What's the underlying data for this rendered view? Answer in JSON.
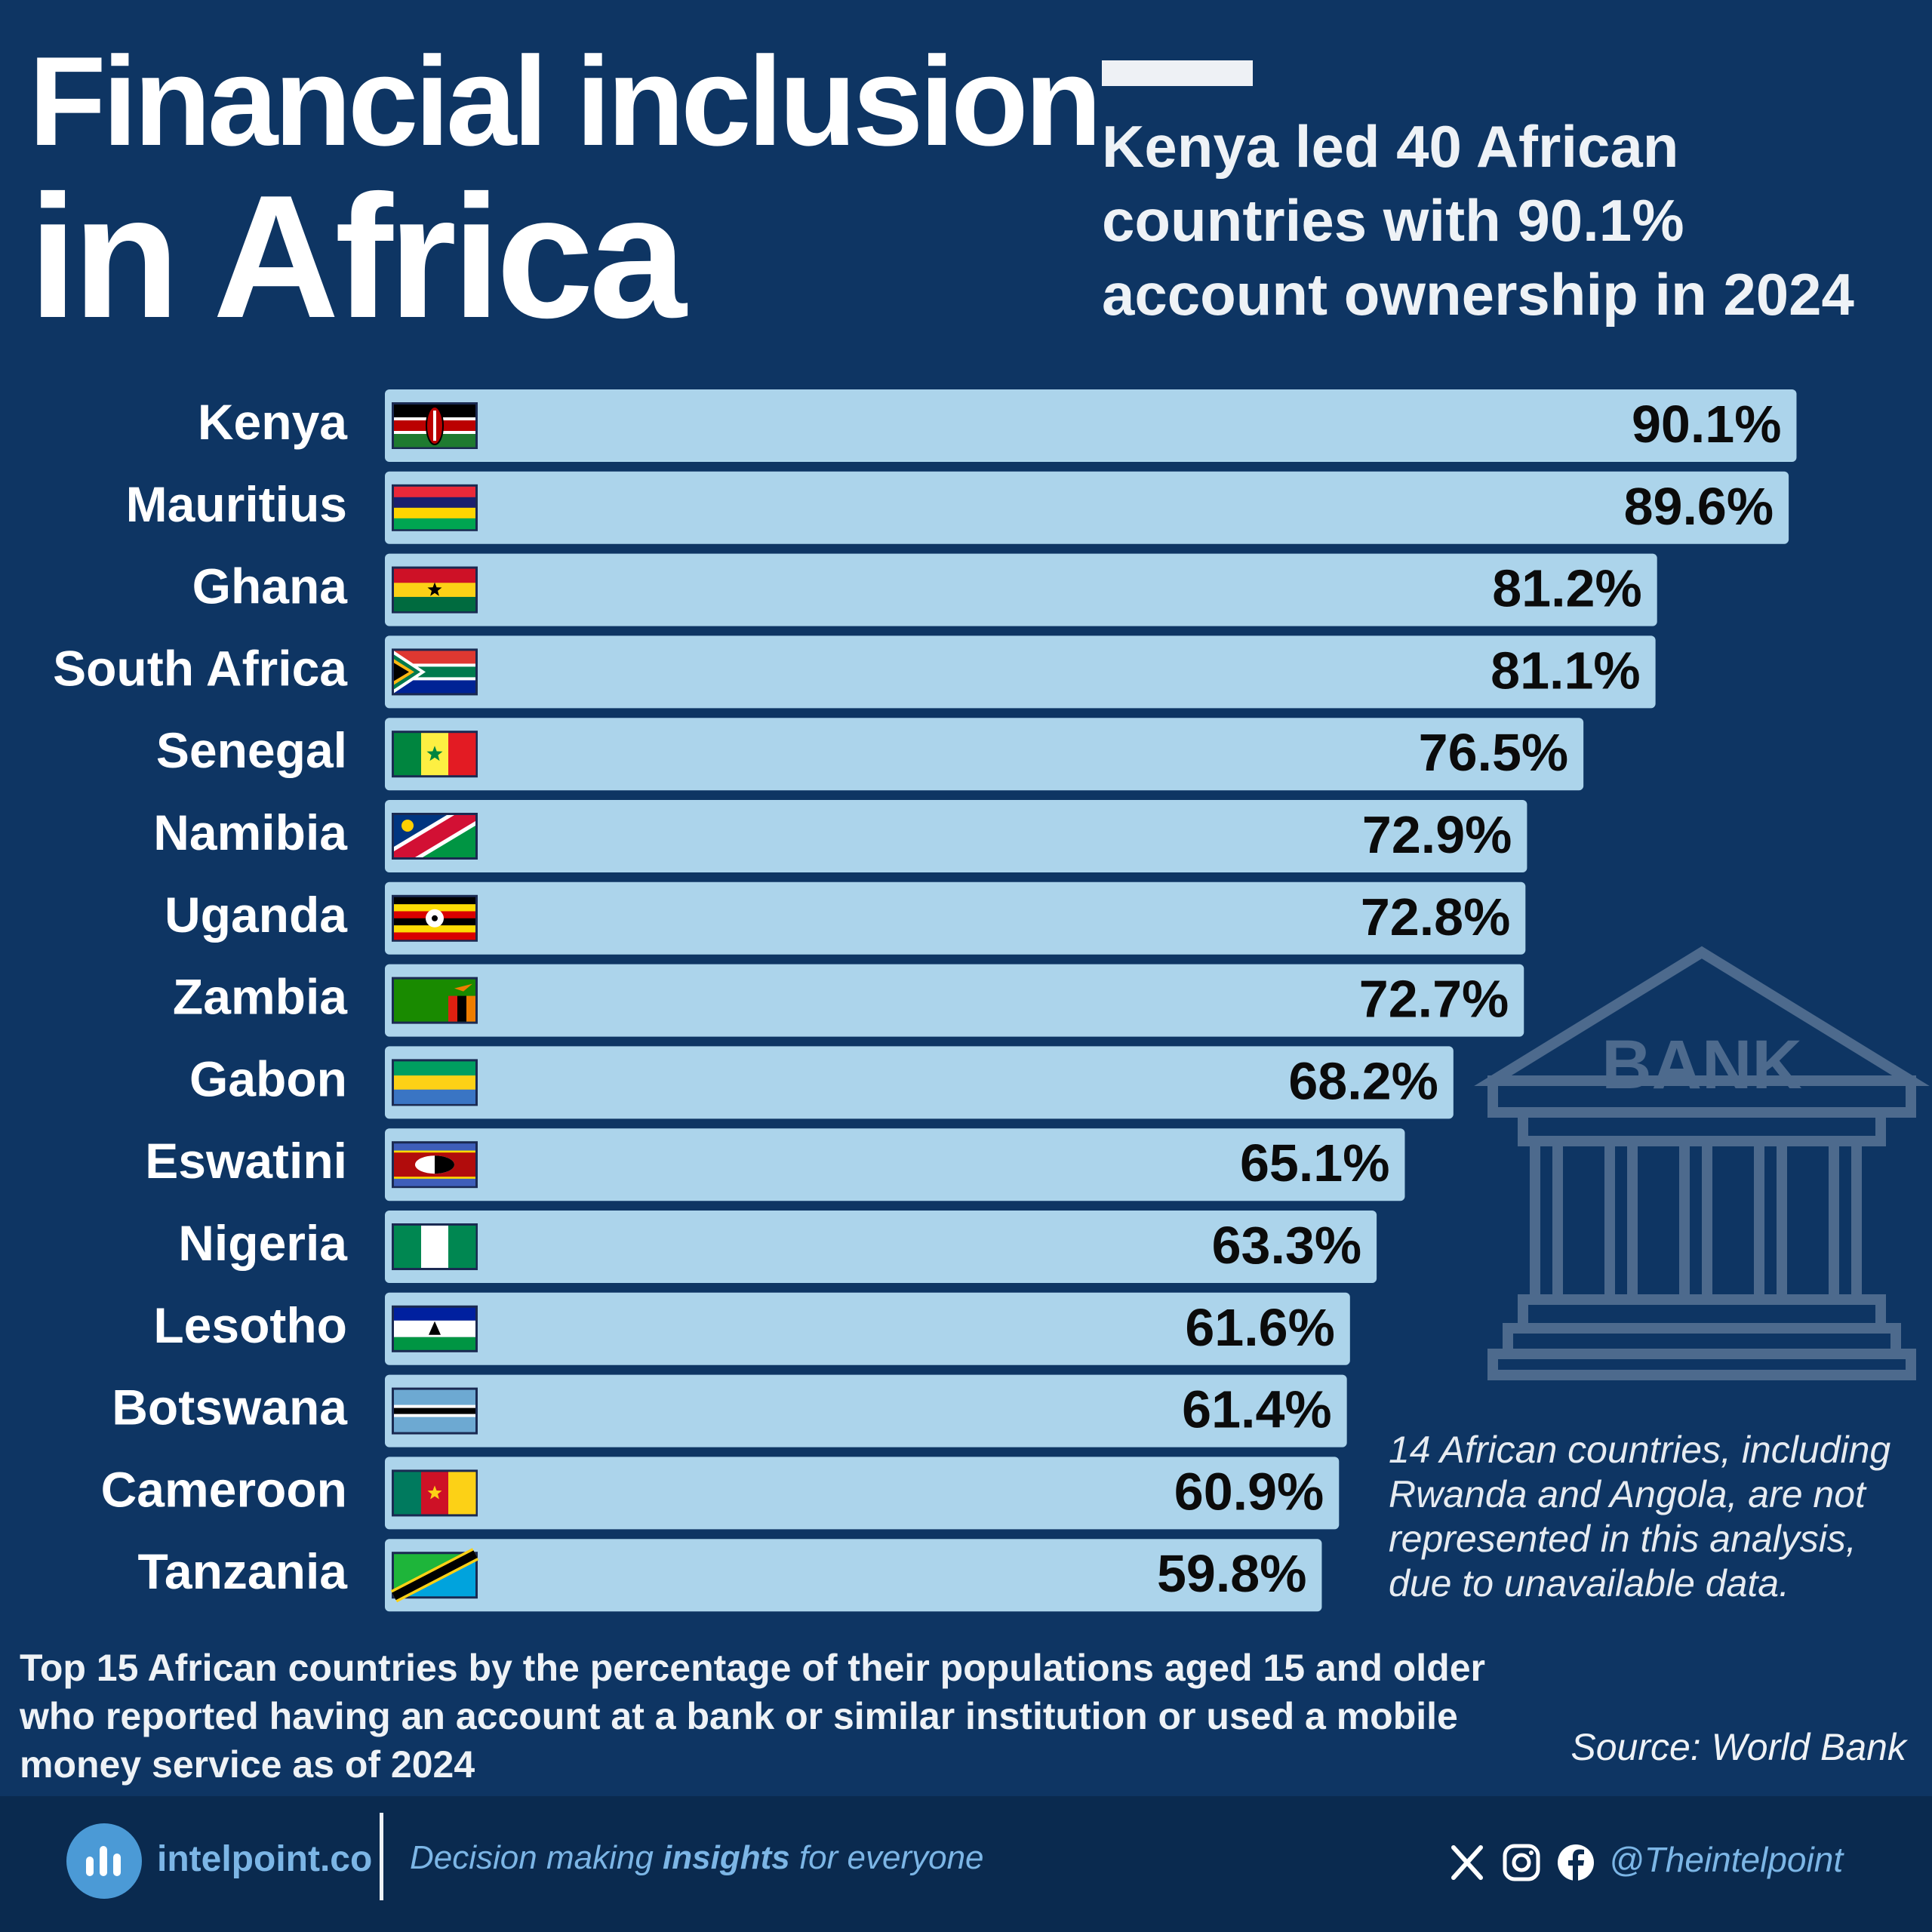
{
  "title": {
    "line1": "Financial inclusion",
    "line2": "in Africa"
  },
  "headline": "Kenya led 40 African countries with 90.1% account ownership in 2024",
  "bank_label": "BANK",
  "note": "14 African countries, including Rwanda and Angola, are not represented in this analysis, due to unavailable data.",
  "caption": "Top 15 African countries by the percentage of their populations aged 15 and older who reported having an account at a bank or similar institution or used a mobile money service as of 2024",
  "source": "Source: World Bank",
  "footer": {
    "brand": "intelpoint.co",
    "tagline_pre": "Decision making ",
    "tagline_bold": "insights",
    "tagline_post": " for everyone",
    "handle": "@Theintelpoint",
    "icons": [
      "x-icon",
      "instagram-icon",
      "facebook-icon"
    ]
  },
  "colors": {
    "background": "#0e3563",
    "bar": "#acd4eb",
    "bar_text": "#0b0b0b",
    "footer": "#0a2a4f",
    "accent": "#7cb6e6"
  },
  "chart_data": {
    "type": "bar",
    "orientation": "horizontal",
    "categories": [
      "Kenya",
      "Mauritius",
      "Ghana",
      "South Africa",
      "Senegal",
      "Namibia",
      "Uganda",
      "Zambia",
      "Gabon",
      "Eswatini",
      "Nigeria",
      "Lesotho",
      "Botswana",
      "Cameroon",
      "Tanzania"
    ],
    "values": [
      90.1,
      89.6,
      81.2,
      81.1,
      76.5,
      72.9,
      72.8,
      72.7,
      68.2,
      65.1,
      63.3,
      61.6,
      61.4,
      60.9,
      59.8
    ],
    "labels": [
      "90.1%",
      "89.6%",
      "81.2%",
      "81.1%",
      "76.5%",
      "72.9%",
      "72.8%",
      "72.7%",
      "68.2%",
      "65.1%",
      "63.3%",
      "61.6%",
      "61.4%",
      "60.9%",
      "59.8%"
    ],
    "flags": [
      "kenya-flag",
      "mauritius-flag",
      "ghana-flag",
      "south-africa-flag",
      "senegal-flag",
      "namibia-flag",
      "uganda-flag",
      "zambia-flag",
      "gabon-flag",
      "eswatini-flag",
      "nigeria-flag",
      "lesotho-flag",
      "botswana-flag",
      "cameroon-flag",
      "tanzania-flag"
    ],
    "unit": "%",
    "xlim": [
      0,
      100
    ]
  }
}
